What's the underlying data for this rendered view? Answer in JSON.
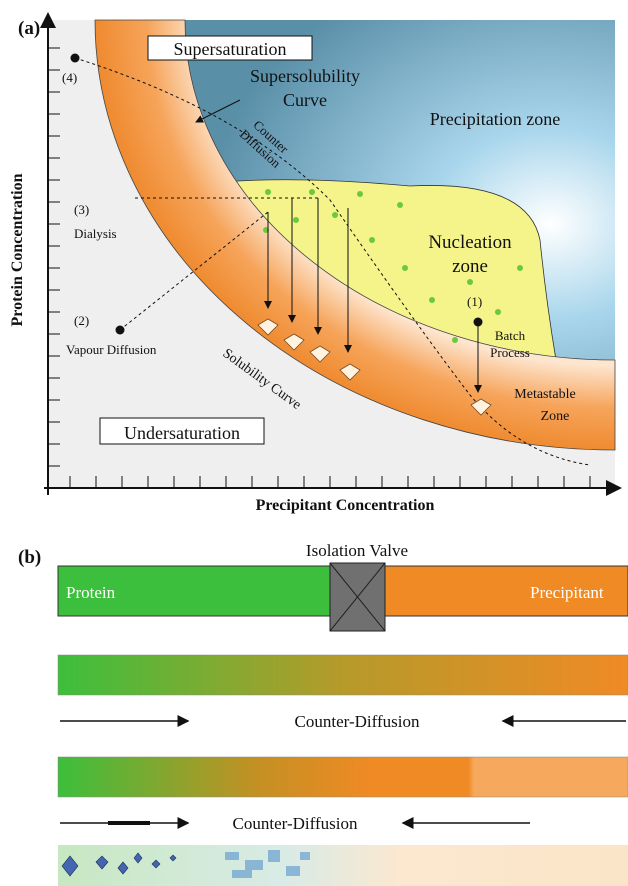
{
  "panel_a": {
    "label": "(a)",
    "y_axis_label": "Protein Concentration",
    "x_axis_label": "Precipitant Concentration",
    "regions": {
      "supersaturation": "Supersaturation",
      "undersaturation": "Undersaturation",
      "precipitation_zone": "Precipitation zone",
      "nucleation_zone": [
        "Nucleation",
        "zone"
      ],
      "metastable_zone": [
        "Metastable",
        "Zone"
      ]
    },
    "curves": {
      "supersolubility": [
        "Supersolubility",
        "Curve"
      ],
      "solubility": "Solubility Curve",
      "counter_diffusion": [
        "Counter",
        "Diffusion"
      ]
    },
    "methods": [
      {
        "number": "(1)",
        "name": [
          "Batch",
          "Process"
        ]
      },
      {
        "number": "(2)",
        "name": "Vapour Diffusion"
      },
      {
        "number": "(3)",
        "name": "Dialysis"
      },
      {
        "number": "(4)"
      }
    ]
  },
  "panel_b": {
    "label": "(b)",
    "valve_label": "Isolation Valve",
    "protein": "Protein",
    "precipitant": "Precipitant",
    "counter_diffusion_1": "Counter-Diffusion",
    "counter_diffusion_2": "Counter-Diffusion"
  }
}
